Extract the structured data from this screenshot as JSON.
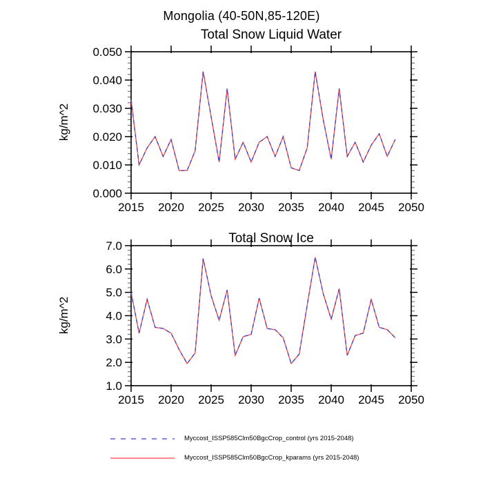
{
  "page_title": "Mongolia (40-50N,85-120E)",
  "colors": {
    "background": "#ffffff",
    "axis": "#000000",
    "minor_tick": "#777777",
    "control_line": "#3c3ccd",
    "kparams_line": "#f94545"
  },
  "legend": {
    "position": "bottom",
    "items": [
      {
        "name": "control",
        "style": "dashed",
        "color": "#3c3ccd",
        "label": "Myccost_ISSP585Clm50BgcCrop_control (yrs 2015-2048)"
      },
      {
        "name": "kparams",
        "style": "solid",
        "color": "#f94545",
        "label": "Myccost_ISSP585Clm50BgcCrop_kparams (yrs 2015-2048)"
      }
    ]
  },
  "chart_data": [
    {
      "type": "line",
      "title": "Total Snow Liquid Water",
      "ylabel": "kg/m^2",
      "xlabel": "",
      "grid": false,
      "xlim": [
        2015,
        2050
      ],
      "ylim": [
        0.0,
        0.05
      ],
      "xticks": [
        "2015",
        "2020",
        "2025",
        "2030",
        "2035",
        "2040",
        "2045",
        "2050"
      ],
      "yticks": [
        "0.000",
        "0.010",
        "0.020",
        "0.030",
        "0.040",
        "0.050"
      ],
      "y_minor_step": 0.002,
      "x": [
        2015,
        2016,
        2017,
        2018,
        2019,
        2020,
        2021,
        2022,
        2023,
        2024,
        2025,
        2026,
        2027,
        2028,
        2029,
        2030,
        2031,
        2032,
        2033,
        2034,
        2035,
        2036,
        2037,
        2038,
        2039,
        2040,
        2041,
        2042,
        2043,
        2044,
        2045,
        2046,
        2047,
        2048
      ],
      "series": [
        {
          "name": "Myccost_ISSP585Clm50BgcCrop_control",
          "style": "dashed",
          "color": "#3c3ccd",
          "values": [
            0.033,
            0.01,
            0.016,
            0.02,
            0.013,
            0.019,
            0.008,
            0.008,
            0.015,
            0.043,
            0.027,
            0.011,
            0.037,
            0.012,
            0.018,
            0.011,
            0.018,
            0.02,
            0.013,
            0.02,
            0.009,
            0.008,
            0.016,
            0.043,
            0.026,
            0.012,
            0.037,
            0.013,
            0.018,
            0.011,
            0.017,
            0.021,
            0.013,
            0.019
          ]
        },
        {
          "name": "Myccost_ISSP585Clm50BgcCrop_kparams",
          "style": "solid",
          "color": "#f94545",
          "values": [
            0.033,
            0.01,
            0.016,
            0.02,
            0.013,
            0.019,
            0.008,
            0.008,
            0.015,
            0.043,
            0.027,
            0.011,
            0.037,
            0.012,
            0.018,
            0.011,
            0.018,
            0.02,
            0.013,
            0.02,
            0.009,
            0.008,
            0.016,
            0.043,
            0.026,
            0.012,
            0.037,
            0.013,
            0.018,
            0.011,
            0.017,
            0.021,
            0.013,
            0.019
          ]
        }
      ]
    },
    {
      "type": "line",
      "title": "Total Snow Ice",
      "ylabel": "kg/m^2",
      "xlabel": "",
      "grid": false,
      "xlim": [
        2015,
        2050
      ],
      "ylim": [
        1.0,
        7.0
      ],
      "xticks": [
        "2015",
        "2020",
        "2025",
        "2030",
        "2035",
        "2040",
        "2045",
        "2050"
      ],
      "yticks": [
        "1.0",
        "2.0",
        "3.0",
        "4.0",
        "5.0",
        "6.0",
        "7.0"
      ],
      "y_minor_step": 0.2,
      "x": [
        2015,
        2016,
        2017,
        2018,
        2019,
        2020,
        2021,
        2022,
        2023,
        2024,
        2025,
        2026,
        2027,
        2028,
        2029,
        2030,
        2031,
        2032,
        2033,
        2034,
        2035,
        2036,
        2037,
        2038,
        2039,
        2040,
        2041,
        2042,
        2043,
        2044,
        2045,
        2046,
        2047,
        2048
      ],
      "series": [
        {
          "name": "Myccost_ISSP585Clm50BgcCrop_control",
          "style": "dashed",
          "color": "#3c3ccd",
          "values": [
            5.0,
            3.25,
            4.7,
            3.5,
            3.45,
            3.25,
            2.55,
            1.95,
            2.4,
            6.45,
            4.85,
            3.8,
            5.1,
            2.3,
            3.1,
            3.2,
            4.75,
            3.45,
            3.4,
            3.05,
            1.95,
            2.35,
            4.45,
            6.5,
            4.95,
            3.85,
            5.15,
            2.3,
            3.15,
            3.25,
            4.7,
            3.5,
            3.4,
            3.05
          ]
        },
        {
          "name": "Myccost_ISSP585Clm50BgcCrop_kparams",
          "style": "solid",
          "color": "#f94545",
          "values": [
            5.0,
            3.25,
            4.7,
            3.5,
            3.45,
            3.25,
            2.55,
            1.95,
            2.4,
            6.45,
            4.85,
            3.8,
            5.1,
            2.3,
            3.1,
            3.2,
            4.75,
            3.45,
            3.4,
            3.05,
            1.95,
            2.35,
            4.45,
            6.5,
            4.95,
            3.85,
            5.15,
            2.3,
            3.15,
            3.25,
            4.7,
            3.5,
            3.4,
            3.05
          ]
        }
      ]
    }
  ]
}
